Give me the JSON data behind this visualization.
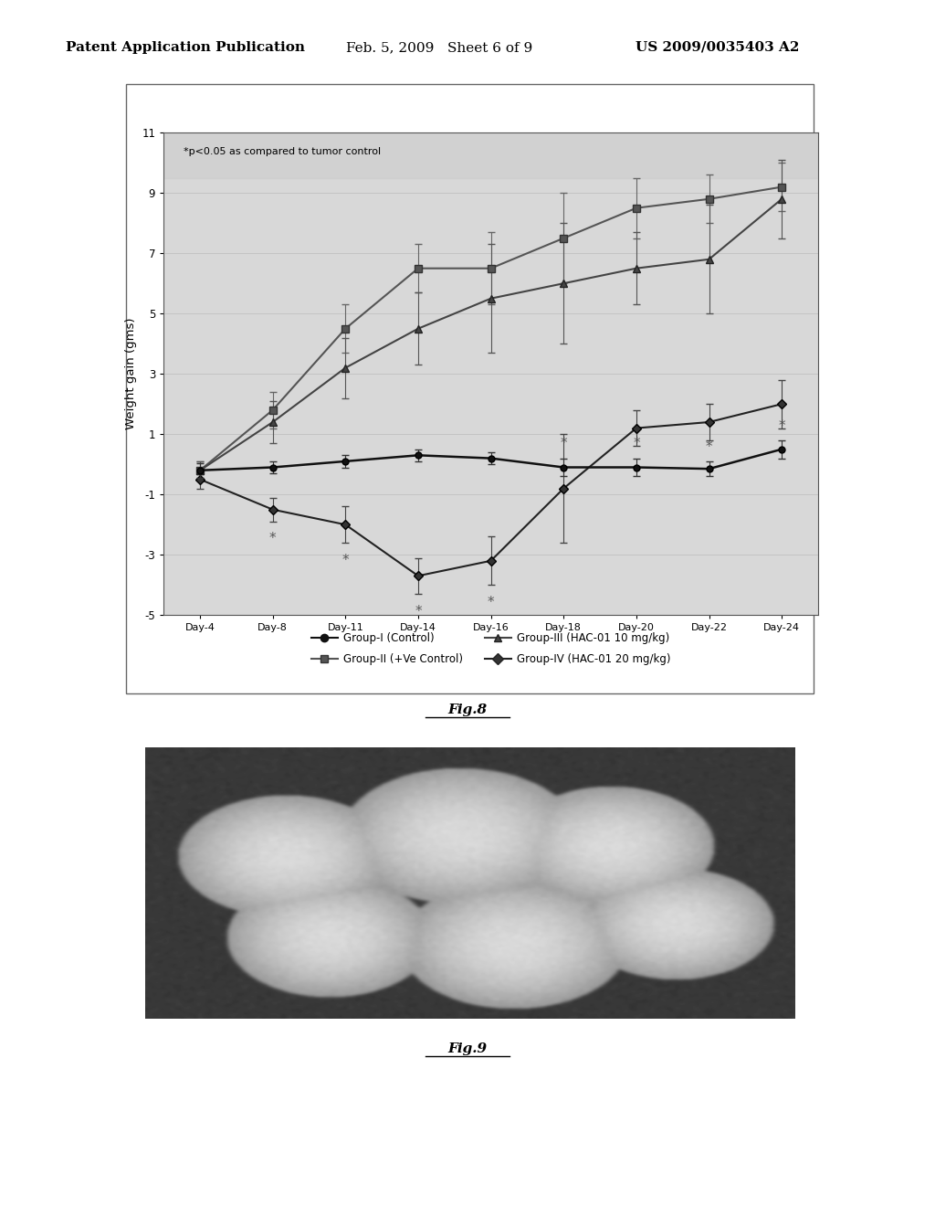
{
  "x_labels": [
    "Day-4",
    "Day-8",
    "Day-11",
    "Day-14",
    "Day-16",
    "Day-18",
    "Day-20",
    "Day-22",
    "Day-24"
  ],
  "group1_y": [
    -0.2,
    -0.1,
    0.1,
    0.3,
    0.2,
    -0.1,
    -0.1,
    -0.15,
    0.5
  ],
  "group1_err": [
    0.25,
    0.2,
    0.2,
    0.2,
    0.2,
    0.3,
    0.3,
    0.25,
    0.3
  ],
  "group2_y": [
    -0.2,
    1.8,
    4.5,
    6.5,
    6.5,
    7.5,
    8.5,
    8.8,
    9.2
  ],
  "group2_err": [
    0.3,
    0.6,
    0.8,
    0.8,
    1.2,
    1.5,
    1.0,
    0.8,
    0.8
  ],
  "group3_y": [
    -0.2,
    1.4,
    3.2,
    4.5,
    5.5,
    6.0,
    6.5,
    6.8,
    8.8
  ],
  "group3_err": [
    0.3,
    0.7,
    1.0,
    1.2,
    1.8,
    2.0,
    1.2,
    1.8,
    1.3
  ],
  "group4_y": [
    -0.5,
    -1.5,
    -2.0,
    -3.7,
    -3.2,
    -0.8,
    1.2,
    1.4,
    2.0
  ],
  "group4_err": [
    0.3,
    0.4,
    0.6,
    0.6,
    0.8,
    1.8,
    0.6,
    0.6,
    0.8
  ],
  "star_g4_idx": [
    1,
    2,
    3,
    4
  ],
  "star_g1_idx": [
    5,
    6,
    7,
    8
  ],
  "ylim": [
    -5,
    11
  ],
  "yticks": [
    -5,
    -3,
    -1,
    1,
    3,
    5,
    7,
    9,
    11
  ],
  "ylabel": "Weight gain (gms)",
  "annotation": "*p<0.05 as compared to tumor control",
  "legend1": "Group-I (Control)",
  "legend2": "Group-II (+Ve Control)",
  "legend3": "Group-III (HAC-01 10 mg/kg)",
  "legend4": "Group-IV (HAC-01 20 mg/kg)",
  "fig_title_left": "Patent Application Publication",
  "fig_title_mid": "Feb. 5, 2009   Sheet 6 of 9",
  "fig_title_right": "US 2009/0035403 A2",
  "fig8_label": "Fig.8",
  "fig9_label": "Fig.9",
  "background_color": "#ffffff",
  "plot_bg_color": "#d8d8d8",
  "chart_border_color": "#888888",
  "photo_bg_color": "#404040"
}
